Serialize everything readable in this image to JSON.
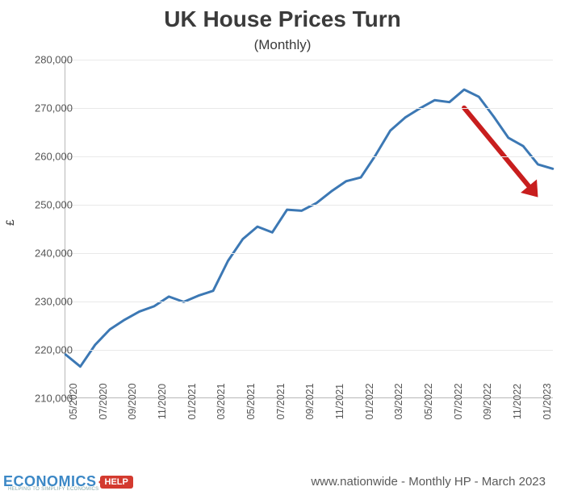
{
  "chart": {
    "type": "line",
    "title": "UK House Prices Turn",
    "title_fontsize": 28,
    "subtitle": "(Monthly)",
    "subtitle_fontsize": 17,
    "ylabel": "£",
    "ylabel_fontsize": 14,
    "background_color": "#ffffff",
    "grid_color": "#e9e9e9",
    "axis_color": "#b7b7b7",
    "text_color": "#555555",
    "line_color": "#3c78b4",
    "line_width": 3,
    "ylim": [
      210000,
      280000
    ],
    "ytick_step": 10000,
    "yticks": [
      "210,000",
      "220,000",
      "230,000",
      "240,000",
      "250,000",
      "260,000",
      "270,000",
      "280,000"
    ],
    "xticks": [
      "05/2020",
      "07/2020",
      "09/2020",
      "11/2020",
      "01/2021",
      "03/2021",
      "05/2021",
      "07/2021",
      "09/2021",
      "11/2021",
      "01/2022",
      "03/2022",
      "05/2022",
      "07/2022",
      "09/2022",
      "11/2022",
      "01/2023"
    ],
    "x_categories": [
      "05/2020",
      "06/2020",
      "07/2020",
      "08/2020",
      "09/2020",
      "10/2020",
      "11/2020",
      "12/2020",
      "01/2021",
      "02/2021",
      "03/2021",
      "04/2021",
      "05/2021",
      "06/2021",
      "07/2021",
      "08/2021",
      "09/2021",
      "10/2021",
      "11/2021",
      "12/2021",
      "01/2022",
      "02/2022",
      "03/2022",
      "04/2022",
      "05/2022",
      "06/2022",
      "07/2022",
      "08/2022",
      "09/2022",
      "10/2022",
      "11/2022",
      "12/2022",
      "01/2023",
      "02/2023"
    ],
    "values": [
      218900,
      216400,
      220900,
      224100,
      226100,
      227800,
      228900,
      230900,
      229800,
      231100,
      232100,
      238300,
      242800,
      245400,
      244200,
      248900,
      248700,
      250300,
      252700,
      254800,
      255600,
      260200,
      265300,
      268000,
      269900,
      271600,
      271200,
      273800,
      272300,
      268200,
      263800,
      262100,
      258300,
      257400
    ],
    "arrow": {
      "color": "#c81e1e",
      "width": 6,
      "start_index": 27,
      "start_value": 270000,
      "end_index": 32,
      "end_value": 251500
    },
    "footer_text": "www.nationwide - Monthly HP - March 2023",
    "footer_fontsize": 15,
    "logo": {
      "text": "ECONOMICS",
      "badge": "HELP",
      "tagline": "HELPING TO SIMPLIFY ECONOMICS",
      "text_color": "#3c88c6",
      "badge_bg": "#d33a2f",
      "badge_fg": "#ffffff"
    }
  }
}
